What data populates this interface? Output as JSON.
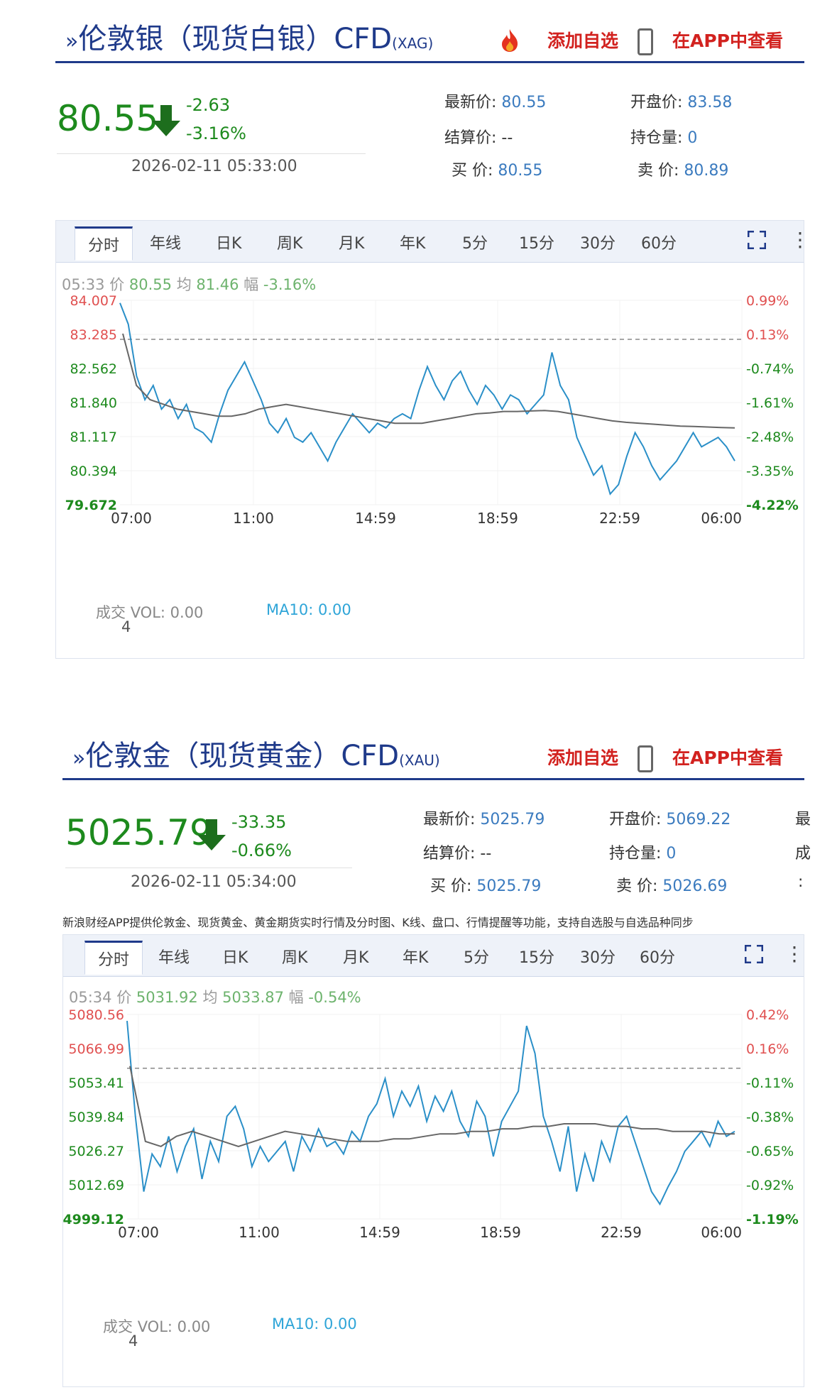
{
  "panels": [
    {
      "name_main": "伦敦银（现货白银）CFD",
      "code": "(XAG)",
      "add_label": "添加自选",
      "app_label": "在APP中查看",
      "price": "80.55",
      "change": "-2.63",
      "change_pct": "-3.16%",
      "timestamp": "2026-02-11 05:33:00",
      "info": {
        "latest_label": "最新价:",
        "latest": "80.55",
        "open_label": "开盘价:",
        "open": "83.58",
        "settle_label": "结算价:",
        "settle": "--",
        "oi_label": "持仓量:",
        "oi": "0",
        "bid_label": "买  价:",
        "bid": "80.55",
        "ask_label": "卖  价:",
        "ask": "80.89"
      },
      "tabs": [
        "分时",
        "年线",
        "日K",
        "周K",
        "月K",
        "年K",
        "5分",
        "15分",
        "30分",
        "60分"
      ],
      "status": {
        "time": "05:33",
        "price_label": "价",
        "price": "80.55",
        "avg_label": "均",
        "avg": "81.46",
        "amp_label": "幅",
        "amp": "-3.16%"
      },
      "vol": {
        "label": "成交",
        "vol": "VOL: 0.00",
        "ma": "MA10: 0.00",
        "count": "4"
      }
    },
    {
      "name_main": "伦敦金（现货黄金）CFD",
      "code": "(XAU)",
      "add_label": "添加自选",
      "app_label": "在APP中查看",
      "price": "5025.79",
      "change": "-33.35",
      "change_pct": "-0.66%",
      "timestamp": "2026-02-11 05:34:00",
      "info": {
        "latest_label": "最新价:",
        "latest": "5025.79",
        "open_label": "开盘价:",
        "open": "5069.22",
        "settle_label": "结算价:",
        "settle": "--",
        "oi_label": "持仓量:",
        "oi": "0",
        "bid_label": "买  价:",
        "bid": "5025.79",
        "ask_label": "卖  价:",
        "ask": "5026.69",
        "clipped": [
          "最",
          "成",
          ":"
        ]
      },
      "note": "新浪财经APP提供伦敦金、现货黄金、黄金期货实时行情及分时图、K线、盘口、行情提醒等功能，支持自选股与自选品种同步",
      "tabs": [
        "分时",
        "年线",
        "日K",
        "周K",
        "月K",
        "年K",
        "5分",
        "15分",
        "30分",
        "60分"
      ],
      "status": {
        "time": "05:34",
        "price_label": "价",
        "price": "5031.92",
        "avg_label": "均",
        "avg": "5033.87",
        "amp_label": "幅",
        "amp": "-0.54%"
      },
      "vol": {
        "label": "成交",
        "vol": "VOL: 0.00",
        "ma": "MA10: 0.00",
        "count": "4"
      }
    }
  ],
  "colors": {
    "up": "#e05050",
    "down": "#1d8a1d",
    "line": "#2a8fc8",
    "avg": "#666666",
    "brand": "#1f3a8a",
    "accent": "#d2221f"
  },
  "chart_data": [
    {
      "type": "line",
      "title": "",
      "x_ticks": [
        "07:00",
        "11:00",
        "14:59",
        "18:59",
        "22:59",
        "06:00"
      ],
      "y_ticks": [
        "84.007",
        "83.285",
        "82.562",
        "81.840",
        "81.117",
        "80.394",
        "79.672"
      ],
      "y_ticks_right": [
        "0.99%",
        "0.13%",
        "-0.74%",
        "-1.61%",
        "-2.48%",
        "-3.35%",
        "-4.22%"
      ],
      "ylim": [
        79.672,
        84.007
      ],
      "prev_close": 83.18,
      "series": [
        {
          "values": [
            83.95,
            83.5,
            82.4,
            81.9,
            82.2,
            81.7,
            81.9,
            81.5,
            81.8,
            81.3,
            81.2,
            81.0,
            81.6,
            82.1,
            82.4,
            82.7,
            82.3,
            81.9,
            81.4,
            81.2,
            81.5,
            81.1,
            81.0,
            81.2,
            80.9,
            80.6,
            81.0,
            81.3,
            81.6,
            81.4,
            81.2,
            81.4,
            81.3,
            81.5,
            81.6,
            81.5,
            82.1,
            82.6,
            82.2,
            81.9,
            82.3,
            82.5,
            82.1,
            81.8,
            82.2,
            82.0,
            81.7,
            82.0,
            81.9,
            81.6,
            81.8,
            82.0,
            82.9,
            82.2,
            81.9,
            81.1,
            80.7,
            80.3,
            80.5,
            79.9,
            80.1,
            80.7,
            81.2,
            80.9,
            80.5,
            80.2,
            80.4,
            80.6,
            80.9,
            81.2,
            80.9,
            81.0,
            81.1,
            80.9,
            80.6
          ]
        },
        {
          "values": [
            83.3,
            82.2,
            81.9,
            81.8,
            81.7,
            81.65,
            81.6,
            81.55,
            81.55,
            81.6,
            81.7,
            81.75,
            81.8,
            81.75,
            81.7,
            81.65,
            81.6,
            81.55,
            81.5,
            81.45,
            81.4,
            81.4,
            81.4,
            81.45,
            81.5,
            81.55,
            81.6,
            81.62,
            81.65,
            81.65,
            81.66,
            81.67,
            81.65,
            81.6,
            81.55,
            81.5,
            81.45,
            81.42,
            81.4,
            81.38,
            81.36,
            81.34,
            81.33,
            81.32,
            81.31,
            81.3
          ]
        }
      ]
    },
    {
      "type": "line",
      "title": "",
      "x_ticks": [
        "07:00",
        "11:00",
        "14:59",
        "18:59",
        "22:59",
        "06:00"
      ],
      "y_ticks": [
        "5080.56",
        "5066.99",
        "5053.41",
        "5039.84",
        "5026.27",
        "5012.69",
        "4999.12"
      ],
      "y_ticks_right": [
        "0.42%",
        "0.16%",
        "-0.11%",
        "-0.38%",
        "-0.65%",
        "-0.92%",
        "-1.19%"
      ],
      "ylim": [
        4999.12,
        5080.56
      ],
      "prev_close": 5059.14,
      "series": [
        {
          "values": [
            5078,
            5040,
            5010,
            5025,
            5020,
            5032,
            5018,
            5028,
            5035,
            5015,
            5030,
            5022,
            5040,
            5044,
            5035,
            5020,
            5028,
            5022,
            5026,
            5030,
            5018,
            5032,
            5026,
            5035,
            5028,
            5030,
            5025,
            5034,
            5030,
            5040,
            5045,
            5055,
            5040,
            5050,
            5044,
            5052,
            5038,
            5048,
            5042,
            5050,
            5038,
            5032,
            5046,
            5040,
            5024,
            5038,
            5044,
            5050,
            5076,
            5065,
            5040,
            5030,
            5018,
            5036,
            5010,
            5025,
            5014,
            5030,
            5022,
            5036,
            5040,
            5030,
            5020,
            5010,
            5005,
            5012,
            5018,
            5026,
            5030,
            5034,
            5028,
            5038,
            5032,
            5034
          ]
        },
        {
          "values": [
            5060,
            5030,
            5028,
            5032,
            5034,
            5032,
            5030,
            5028,
            5030,
            5032,
            5034,
            5033,
            5032,
            5031,
            5030,
            5030,
            5030,
            5031,
            5031,
            5032,
            5033,
            5033,
            5034,
            5034,
            5035,
            5035,
            5036,
            5036,
            5037,
            5037,
            5037,
            5036,
            5036,
            5035,
            5035,
            5034,
            5034,
            5034,
            5033,
            5033
          ]
        }
      ]
    }
  ]
}
